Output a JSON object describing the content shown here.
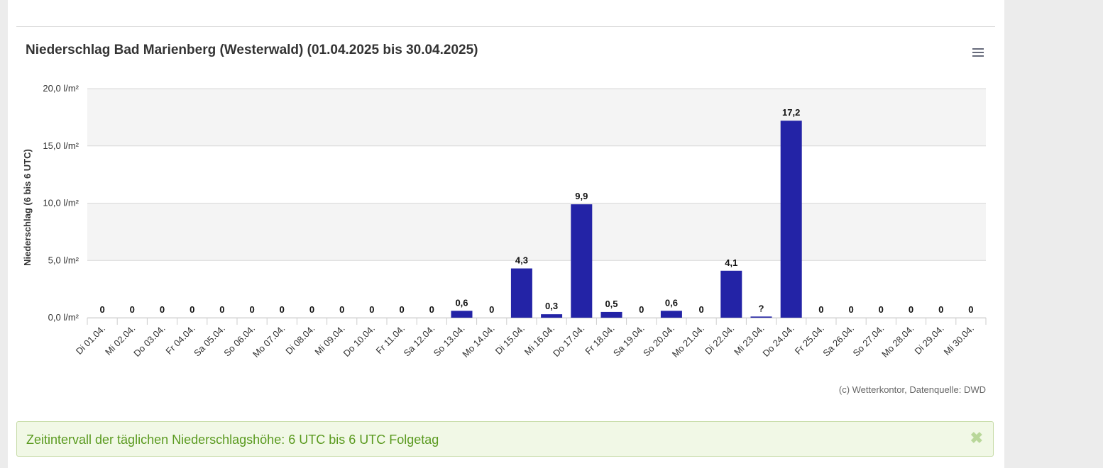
{
  "chart": {
    "title": "Niederschlag Bad Marienberg (Westerwald) (01.04.2025 bis 30.04.2025)",
    "credits": "(c) Wetterkontor, Datenquelle: DWD",
    "menu_icon": "hamburger-menu-icon"
  },
  "info": {
    "text": "Zeitintervall der täglichen Niederschlagshöhe: 6 UTC bis 6 UTC Folgetag",
    "close_icon": "close-icon",
    "close_symbol": "✖"
  },
  "colors": {
    "bar": "#2323a6",
    "plot_band": "#f4f4f4",
    "gridline": "#d8d8d8",
    "info_text": "#5a9a1f"
  },
  "chart_data": {
    "type": "bar",
    "title": "Niederschlag Bad Marienberg (Westerwald) (01.04.2025 bis 30.04.2025)",
    "ylabel": "Niederschlag (6 bis 6 UTC)",
    "xlabel": "",
    "ylim": [
      0,
      20
    ],
    "yticks": [
      "0,0 l/m²",
      "5,0 l/m²",
      "10,0 l/m²",
      "15,0 l/m²",
      "20,0 l/m²"
    ],
    "grid": true,
    "categories": [
      "Di 01.04.",
      "Mi 02.04.",
      "Do 03.04.",
      "Fr 04.04.",
      "Sa 05.04.",
      "So 06.04.",
      "Mo 07.04.",
      "Di 08.04.",
      "Mi 09.04.",
      "Do 10.04.",
      "Fr 11.04.",
      "Sa 12.04.",
      "So 13.04.",
      "Mo 14.04.",
      "Di 15.04.",
      "Mi 16.04.",
      "Do 17.04.",
      "Fr 18.04.",
      "Sa 19.04.",
      "So 20.04.",
      "Mo 21.04.",
      "Di 22.04.",
      "Mi 23.04.",
      "Do 24.04.",
      "Fr 25.04.",
      "Sa 26.04.",
      "So 27.04.",
      "Mo 28.04.",
      "Di 29.04.",
      "Mi 30.04."
    ],
    "values": [
      0,
      0,
      0,
      0,
      0,
      0,
      0,
      0,
      0,
      0,
      0,
      0,
      0.6,
      0,
      4.3,
      0.3,
      9.9,
      0.5,
      0,
      0.6,
      0,
      4.1,
      0.1,
      17.2,
      0,
      0,
      0,
      0,
      0,
      0
    ],
    "data_labels": [
      "0",
      "0",
      "0",
      "0",
      "0",
      "0",
      "0",
      "0",
      "0",
      "0",
      "0",
      "0",
      "0,6",
      "0",
      "4,3",
      "0,3",
      "9,9",
      "0,5",
      "0",
      "0,6",
      "0",
      "4,1",
      "?",
      "17,2",
      "0",
      "0",
      "0",
      "0",
      "0",
      "0"
    ]
  }
}
